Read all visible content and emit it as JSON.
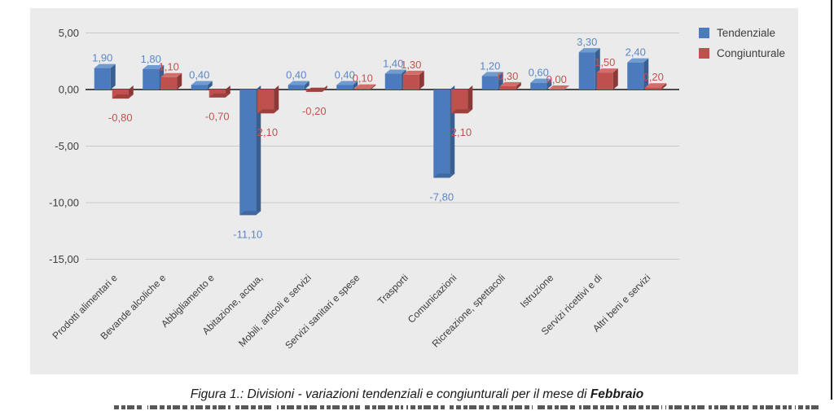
{
  "figure": {
    "caption_prefix": "Figura 1.: Divisioni - variazioni tendenziali e congiunturali per il mese di ",
    "caption_month": "Febbraio"
  },
  "chart_data": {
    "type": "bar",
    "title": "",
    "xlabel": "",
    "ylabel": "",
    "categories": [
      "Prodotti alimentari e",
      "Bevande alcoliche e",
      "Abbigliamento e",
      "Abitazione, acqua,",
      "Mobili, articoli e servizi",
      "Servizi sanitari e spese",
      "Trasporti",
      "Comunicazioni",
      "Ricreazione, spettacoli",
      "Istruzione",
      "Servizi ricettivi e di",
      "Altri beni e servizi"
    ],
    "series": [
      {
        "name": "Tendenziale",
        "values": [
          1.9,
          1.8,
          0.4,
          -11.1,
          0.4,
          0.4,
          1.4,
          -7.8,
          1.2,
          0.6,
          3.3,
          2.4
        ],
        "labels": [
          "1,90",
          "1,80",
          "0,40",
          "-11,10",
          "0,40",
          "0,40",
          "1,40",
          "-7,80",
          "1,20",
          "0,60",
          "3,30",
          "2,40"
        ],
        "colors": {
          "front": "#4b7bbc",
          "side": "#395f92",
          "cap": "#6f9bce",
          "capneg": "#41699f",
          "label": "#5c87c6"
        }
      },
      {
        "name": "Congiunturale",
        "values": [
          -0.8,
          1.1,
          -0.7,
          -2.1,
          -0.2,
          0.1,
          1.3,
          -2.1,
          0.3,
          0.0,
          1.5,
          0.2
        ],
        "labels": [
          "-0,80",
          "1,10",
          "-0,70",
          "-2,10",
          "-0,20",
          "0,10",
          "1,30",
          "-2,10",
          "0,30",
          "0,00",
          "1,50",
          "0,20"
        ],
        "colors": {
          "front": "#c0504d",
          "side": "#8c3836",
          "cap": "#d16d6a",
          "capneg": "#9e403d",
          "label": "#c4534f"
        }
      }
    ],
    "yticks": [
      {
        "value": 5,
        "label": "5,00"
      },
      {
        "value": 0,
        "label": "0,00"
      },
      {
        "value": -5,
        "label": "-5,00"
      },
      {
        "value": -10,
        "label": "-10,00"
      },
      {
        "value": -15,
        "label": "-15,00"
      }
    ],
    "ylim": [
      -15,
      7.2
    ],
    "grid": true,
    "legend_position": "top-right",
    "colors": {
      "panel": "#ebebeb",
      "grid": "#c8c8c8",
      "axis": "#4b4b4b",
      "text": "#3c3c3c"
    }
  }
}
